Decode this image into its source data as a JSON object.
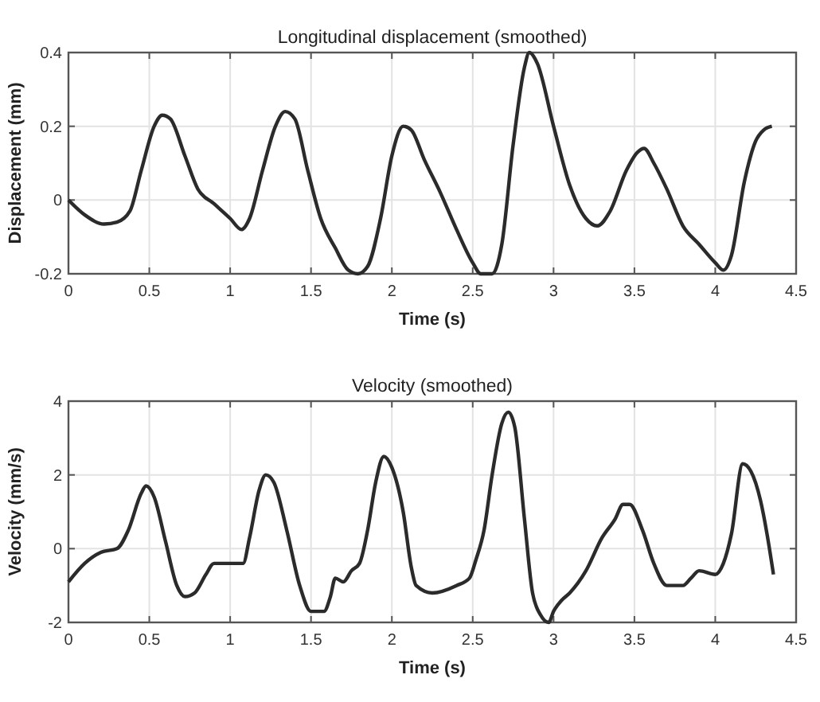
{
  "chart_data": [
    {
      "type": "line",
      "title": "Longitudinal displacement (smoothed)",
      "xlabel": "Time (s)",
      "ylabel": "Displacement (mm)",
      "xlim": [
        0,
        4.5
      ],
      "xticks": [
        0,
        0.5,
        1,
        1.5,
        2,
        2.5,
        3,
        3.5,
        4,
        4.5
      ],
      "ylim": [
        -0.2,
        0.4
      ],
      "yticks": [
        -0.2,
        0,
        0.2,
        0.4
      ],
      "grid": true,
      "line_style": "solid",
      "x": [
        0,
        0.1,
        0.22,
        0.3,
        0.38,
        0.45,
        0.53,
        0.58,
        0.63,
        0.72,
        0.8,
        0.9,
        1.0,
        1.07,
        1.12,
        1.2,
        1.28,
        1.34,
        1.4,
        1.48,
        1.56,
        1.65,
        1.73,
        1.79,
        1.85,
        1.93,
        2.0,
        2.07,
        2.12,
        2.2,
        2.3,
        2.4,
        2.5,
        2.55,
        2.62,
        2.68,
        2.75,
        2.82,
        2.85,
        2.9,
        3.0,
        3.1,
        3.2,
        3.27,
        3.35,
        3.45,
        3.52,
        3.56,
        3.62,
        3.7,
        3.8,
        3.9,
        4.0,
        4.05,
        4.1,
        4.18,
        4.25,
        4.3,
        4.35
      ],
      "series": [
        {
          "color": "#2b2b2b",
          "values": [
            0,
            -0.04,
            -0.065,
            -0.06,
            -0.03,
            0.08,
            0.2,
            0.23,
            0.22,
            0.12,
            0.03,
            -0.01,
            -0.05,
            -0.08,
            -0.05,
            0.08,
            0.2,
            0.24,
            0.22,
            0.08,
            -0.05,
            -0.13,
            -0.19,
            -0.2,
            -0.18,
            -0.05,
            0.12,
            0.2,
            0.19,
            0.11,
            0.02,
            -0.08,
            -0.17,
            -0.2,
            -0.2,
            -0.12,
            0.15,
            0.36,
            0.4,
            0.37,
            0.2,
            0.04,
            -0.05,
            -0.07,
            -0.03,
            0.08,
            0.13,
            0.14,
            0.1,
            0.03,
            -0.07,
            -0.12,
            -0.17,
            -0.19,
            -0.15,
            0.05,
            0.16,
            0.19,
            0.2
          ]
        }
      ]
    },
    {
      "type": "line",
      "title": "Velocity (smoothed)",
      "xlabel": "Time (s)",
      "ylabel": "Velocity (mm/s)",
      "xlim": [
        0,
        4.5
      ],
      "xticks": [
        0,
        0.5,
        1,
        1.5,
        2,
        2.5,
        3,
        3.5,
        4,
        4.5
      ],
      "ylim": [
        -2,
        4
      ],
      "yticks": [
        -2,
        0,
        2,
        4
      ],
      "grid": true,
      "line_style": "solid",
      "x": [
        0,
        0.1,
        0.2,
        0.3,
        0.37,
        0.45,
        0.48,
        0.53,
        0.6,
        0.67,
        0.72,
        0.78,
        0.85,
        0.9,
        1.0,
        1.08,
        1.12,
        1.18,
        1.22,
        1.27,
        1.35,
        1.43,
        1.5,
        1.58,
        1.62,
        1.65,
        1.7,
        1.75,
        1.8,
        1.85,
        1.9,
        1.95,
        2.0,
        2.07,
        2.12,
        2.15,
        2.25,
        2.4,
        2.48,
        2.52,
        2.57,
        2.62,
        2.68,
        2.72,
        2.76,
        2.82,
        2.87,
        2.92,
        2.97,
        3.0,
        3.05,
        3.1,
        3.2,
        3.3,
        3.38,
        3.43,
        3.47,
        3.55,
        3.62,
        3.7,
        3.8,
        3.85,
        3.9,
        4.0,
        4.05,
        4.1,
        4.17,
        4.22,
        4.28,
        4.32,
        4.36
      ],
      "series": [
        {
          "color": "#2b2b2b",
          "values": [
            -0.9,
            -0.4,
            -0.1,
            0,
            0.5,
            1.5,
            1.7,
            1.4,
            0.2,
            -1.0,
            -1.3,
            -1.2,
            -0.7,
            -0.4,
            -0.4,
            -0.4,
            0.3,
            1.6,
            2.0,
            1.8,
            0.5,
            -1.0,
            -1.7,
            -1.7,
            -1.3,
            -0.8,
            -0.9,
            -0.6,
            -0.4,
            0.5,
            1.8,
            2.5,
            2.2,
            1.0,
            -0.5,
            -1.0,
            -1.2,
            -1.0,
            -0.8,
            -0.3,
            0.5,
            2.0,
            3.4,
            3.7,
            3.3,
            0.8,
            -1.2,
            -1.8,
            -2.0,
            -1.7,
            -1.4,
            -1.2,
            -0.6,
            0.3,
            0.8,
            1.2,
            1.2,
            0.5,
            -0.4,
            -1.0,
            -1.0,
            -0.8,
            -0.6,
            -0.7,
            -0.4,
            0.4,
            2.3,
            2.1,
            1.3,
            0.4,
            -0.7
          ]
        }
      ]
    }
  ]
}
